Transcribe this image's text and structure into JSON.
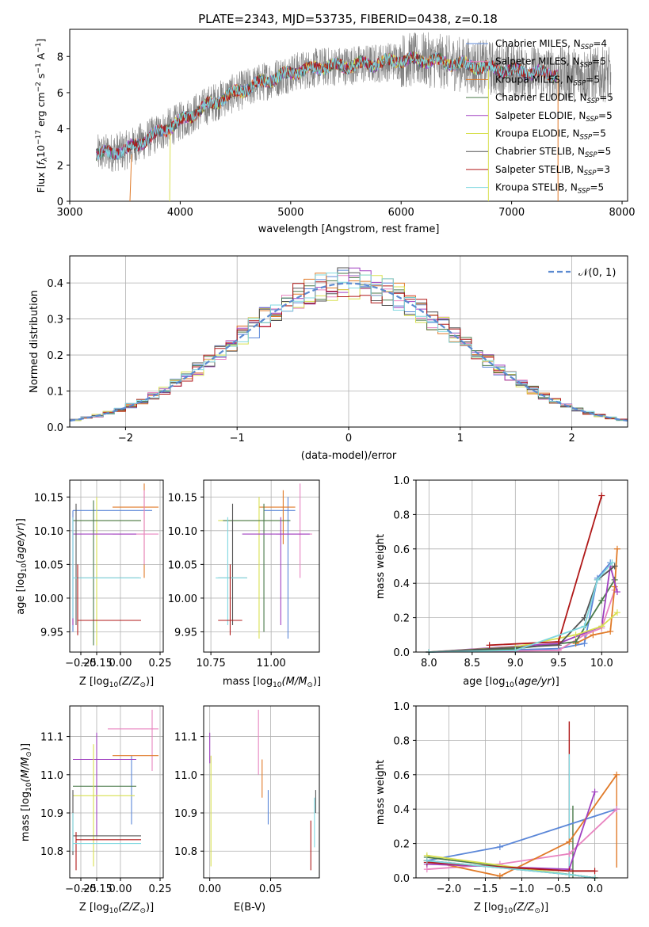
{
  "colors": {
    "chabrier_miles": "#5b87d8",
    "salpeter_miles": "#e884c0",
    "kroupa_miles": "#e07a28",
    "chabrier_elodie": "#4a7a4a",
    "salpeter_elodie": "#a040c0",
    "kroupa_elodie": "#d8e050",
    "chabrier_stelib": "#555555",
    "salpeter_stelib": "#b01818",
    "kroupa_stelib": "#80d8e0",
    "gauss": "#5b8ad0",
    "data": "#808080"
  },
  "chart_data": [
    {
      "id": "spectrum",
      "type": "line",
      "title": "PLATE=2343, MJD=53735, FIBERID=0438, z=0.18",
      "xlabel": "wavelength [Angstrom, rest frame]",
      "ylabel": "Flux [f_λ 10^-17 erg cm^-2 s^-1 A^-1]",
      "xlim": [
        3000,
        8050
      ],
      "ylim": [
        0,
        9.5
      ],
      "xticks": [
        "3000",
        "4000",
        "5000",
        "6000",
        "7000",
        "8000"
      ],
      "yticks": [
        "0",
        "2",
        "4",
        "6",
        "8"
      ],
      "legend_position": "top-right",
      "grid": false,
      "continuum_x": [
        3250,
        3500,
        3750,
        4000,
        4250,
        4500,
        4750,
        5000,
        5250,
        5500,
        5750,
        6000,
        6250,
        6500,
        6750,
        7000,
        7250,
        7500
      ],
      "continuum_y": [
        2.6,
        2.8,
        3.6,
        4.4,
        5.3,
        6.0,
        6.6,
        7.1,
        7.4,
        7.5,
        7.6,
        7.8,
        7.8,
        7.6,
        7.4,
        7.2,
        7.1,
        7.0
      ],
      "series": [
        {
          "name": "Chabrier MILES, N_SSP=4",
          "label_main": "Chabrier MILES, N",
          "label_sub": "SSP",
          "label_tail": "=4",
          "color_key": "chabrier_miles"
        },
        {
          "name": "Salpeter MILES, N_SSP=5",
          "label_main": "Salpeter MILES, N",
          "label_sub": "SSP",
          "label_tail": "=5",
          "color_key": "salpeter_miles"
        },
        {
          "name": "Kroupa MILES, N_SSP=5",
          "label_main": "Kroupa MILES, N",
          "label_sub": "SSP",
          "label_tail": "=5",
          "color_key": "kroupa_miles"
        },
        {
          "name": "Chabrier ELODIE, N_SSP=5",
          "label_main": "Chabrier ELODIE, N",
          "label_sub": "SSP",
          "label_tail": "=5",
          "color_key": "chabrier_elodie"
        },
        {
          "name": "Salpeter ELODIE, N_SSP=5",
          "label_main": "Salpeter ELODIE, N",
          "label_sub": "SSP",
          "label_tail": "=5",
          "color_key": "salpeter_elodie"
        },
        {
          "name": "Kroupa ELODIE, N_SSP=5",
          "label_main": "Kroupa ELODIE, N",
          "label_sub": "SSP",
          "label_tail": "=5",
          "color_key": "kroupa_elodie"
        },
        {
          "name": "Chabrier STELIB, N_SSP=5",
          "label_main": "Chabrier STELIB, N",
          "label_sub": "SSP",
          "label_tail": "=5",
          "color_key": "chabrier_stelib"
        },
        {
          "name": "Salpeter STELIB, N_SSP=3",
          "label_main": "Salpeter STELIB, N",
          "label_sub": "SSP",
          "label_tail": "=3",
          "color_key": "salpeter_stelib"
        },
        {
          "name": "Kroupa STELIB, N_SSP=5",
          "label_main": "Kroupa STELIB, N",
          "label_sub": "SSP",
          "label_tail": "=5",
          "color_key": "kroupa_stelib"
        }
      ]
    },
    {
      "id": "residuals",
      "type": "bar",
      "xlabel": "(data-model)/error",
      "ylabel": "Normed distribution",
      "xlim": [
        -2.5,
        2.5
      ],
      "ylim": [
        0,
        0.475
      ],
      "xticks": [
        "−2",
        "−1",
        "0",
        "1",
        "2"
      ],
      "yticks": [
        "0.0",
        "0.1",
        "0.2",
        "0.3",
        "0.4"
      ],
      "legend_position": "top-right",
      "legend_label": "𝒩(0, 1)",
      "grid": true,
      "bin_width": 0.1,
      "x_start": -2.5
    },
    {
      "id": "age_vs_Z",
      "type": "scatter",
      "xlabel_main": "Z [log",
      "xlabel_sub": "10",
      "xlabel_tail": "(Z/Z",
      "xlabel_end": ")]",
      "ylabel": "age  [log10(age/yr)]",
      "xlim": [
        -0.32,
        0.27
      ],
      "ylim": [
        9.92,
        10.175
      ],
      "xticks": [
        "−0.25",
        "−0.15",
        "0.00",
        "0.25"
      ],
      "xtick_values": [
        -0.25,
        -0.15,
        0.0,
        0.25
      ],
      "yticks": [
        "9.95",
        "10.00",
        "10.05",
        "10.10",
        "10.15"
      ],
      "ytick_values": [
        9.95,
        10.0,
        10.05,
        10.1,
        10.15
      ],
      "grid": true,
      "points": [
        {
          "color_key": "chabrier_miles",
          "x": -0.3,
          "x_lo": -0.3,
          "x_hi": 0.2,
          "y": 10.13,
          "y_lo": 9.95,
          "y_hi": 10.13
        },
        {
          "color_key": "kroupa_miles",
          "x": 0.15,
          "x_lo": -0.05,
          "x_hi": 0.24,
          "y": 10.135,
          "y_lo": 10.03,
          "y_hi": 10.17
        },
        {
          "color_key": "salpeter_miles",
          "x": 0.15,
          "x_lo": -0.05,
          "x_hi": 0.24,
          "y": 10.095,
          "y_lo": 10.05,
          "y_hi": 10.16
        },
        {
          "color_key": "kroupa_elodie",
          "x": -0.15,
          "x_lo": -0.3,
          "x_hi": 0.13,
          "y": 10.115,
          "y_lo": 9.93,
          "y_hi": 10.15
        },
        {
          "color_key": "chabrier_elodie",
          "x": -0.17,
          "x_lo": -0.3,
          "x_hi": 0.13,
          "y": 10.115,
          "y_lo": 9.93,
          "y_hi": 10.145
        },
        {
          "color_key": "salpeter_elodie",
          "x": -0.3,
          "x_lo": -0.3,
          "x_hi": 0.1,
          "y": 10.095,
          "y_lo": 9.96,
          "y_hi": 10.12
        },
        {
          "color_key": "chabrier_stelib",
          "x": -0.28,
          "x_lo": -0.28,
          "x_hi": 0.12,
          "y": 10.03,
          "y_lo": 9.96,
          "y_hi": 10.14
        },
        {
          "color_key": "kroupa_stelib",
          "x": -0.3,
          "x_lo": -0.3,
          "x_hi": 0.13,
          "y": 10.03,
          "y_lo": 9.97,
          "y_hi": 10.12
        },
        {
          "color_key": "salpeter_stelib",
          "x": -0.27,
          "x_lo": -0.27,
          "x_hi": 0.13,
          "y": 9.967,
          "y_lo": 9.945,
          "y_hi": 10.05
        }
      ]
    },
    {
      "id": "age_vs_mass",
      "type": "scatter",
      "xlabel_main": "mass [log",
      "xlabel_sub": "10",
      "xlabel_tail": "(M/M",
      "xlabel_end": ")]",
      "xlim": [
        10.72,
        11.2
      ],
      "ylim": [
        9.92,
        10.175
      ],
      "xticks": [
        "10.75",
        "11.00"
      ],
      "xtick_values": [
        10.75,
        11.0
      ],
      "yticks": [
        "9.95",
        "10.00",
        "10.05",
        "10.10",
        "10.15"
      ],
      "ytick_values": [
        9.95,
        10.0,
        10.05,
        10.1,
        10.15
      ],
      "grid": true,
      "points": [
        {
          "color_key": "chabrier_miles",
          "x": 11.07,
          "x_lo": 10.97,
          "x_hi": 11.1,
          "y": 10.13,
          "y_lo": 9.94,
          "y_hi": 10.15
        },
        {
          "color_key": "kroupa_miles",
          "x": 11.05,
          "x_lo": 10.95,
          "x_hi": 11.1,
          "y": 10.135,
          "y_lo": 10.08,
          "y_hi": 10.16
        },
        {
          "color_key": "salpeter_miles",
          "x": 11.12,
          "x_lo": 11.02,
          "x_hi": 11.17,
          "y": 10.095,
          "y_lo": 10.03,
          "y_hi": 10.17
        },
        {
          "color_key": "kroupa_elodie",
          "x": 10.95,
          "x_lo": 10.78,
          "x_hi": 11.06,
          "y": 10.115,
          "y_lo": 9.94,
          "y_hi": 10.15
        },
        {
          "color_key": "chabrier_elodie",
          "x": 10.97,
          "x_lo": 10.8,
          "x_hi": 11.08,
          "y": 10.115,
          "y_lo": 9.95,
          "y_hi": 10.14
        },
        {
          "color_key": "salpeter_elodie",
          "x": 11.04,
          "x_lo": 10.88,
          "x_hi": 11.16,
          "y": 10.095,
          "y_lo": 9.96,
          "y_hi": 10.12
        },
        {
          "color_key": "chabrier_stelib",
          "x": 10.84,
          "x_lo": 10.78,
          "x_hi": 10.9,
          "y": 10.03,
          "y_lo": 9.96,
          "y_hi": 10.14
        },
        {
          "color_key": "kroupa_stelib",
          "x": 10.82,
          "x_lo": 10.77,
          "x_hi": 10.9,
          "y": 10.03,
          "y_lo": 9.96,
          "y_hi": 10.12
        },
        {
          "color_key": "salpeter_stelib",
          "x": 10.83,
          "x_lo": 10.78,
          "x_hi": 10.88,
          "y": 9.967,
          "y_lo": 9.945,
          "y_hi": 10.05
        }
      ]
    },
    {
      "id": "mass_weight_vs_age",
      "type": "line",
      "xlabel": "age  [log10(age/yr)]",
      "ylabel": "mass weight",
      "xlim": [
        7.85,
        10.3
      ],
      "ylim": [
        0,
        1
      ],
      "xticks": [
        "8.0",
        "8.5",
        "9.0",
        "9.5",
        "10.0"
      ],
      "xtick_values": [
        8.0,
        8.5,
        9.0,
        9.5,
        10.0
      ],
      "yticks": [
        "0.0",
        "0.2",
        "0.4",
        "0.6",
        "0.8",
        "1.0"
      ],
      "ytick_values": [
        0.0,
        0.2,
        0.4,
        0.6,
        0.8,
        1.0
      ],
      "grid": true,
      "series": [
        {
          "color_key": "chabrier_miles",
          "x": [
            8.0,
            9.5,
            9.8,
            9.95,
            10.1
          ],
          "y": [
            0.0,
            0.02,
            0.05,
            0.43,
            0.52
          ]
        },
        {
          "color_key": "salpeter_miles",
          "x": [
            8.0,
            9.5,
            9.8,
            10.0,
            10.15
          ],
          "y": [
            0.0,
            0.01,
            0.1,
            0.14,
            0.36
          ]
        },
        {
          "color_key": "kroupa_miles",
          "x": [
            9.7,
            9.9,
            10.1,
            10.15,
            10.18
          ],
          "y": [
            0.05,
            0.1,
            0.12,
            0.38,
            0.6
          ]
        },
        {
          "color_key": "chabrier_elodie",
          "x": [
            8.0,
            9.0,
            9.7,
            10.0,
            10.15
          ],
          "y": [
            0.0,
            0.02,
            0.06,
            0.3,
            0.42
          ]
        },
        {
          "color_key": "salpeter_elodie",
          "x": [
            8.0,
            9.5,
            10.0,
            10.1,
            10.18
          ],
          "y": [
            0.0,
            0.05,
            0.15,
            0.5,
            0.35
          ]
        },
        {
          "color_key": "kroupa_elodie",
          "x": [
            8.0,
            9.0,
            9.7,
            10.0,
            10.18
          ],
          "y": [
            0.0,
            0.03,
            0.1,
            0.15,
            0.23
          ]
        },
        {
          "color_key": "chabrier_stelib",
          "x": [
            8.0,
            9.5,
            9.8,
            9.95,
            10.15
          ],
          "y": [
            0.0,
            0.04,
            0.2,
            0.42,
            0.5
          ]
        },
        {
          "color_key": "salpeter_stelib",
          "x": [
            8.7,
            9.5,
            10.0
          ],
          "y": [
            0.04,
            0.06,
            0.91
          ]
        },
        {
          "color_key": "kroupa_stelib",
          "x": [
            8.0,
            9.0,
            9.8,
            9.95,
            10.12
          ],
          "y": [
            0.0,
            0.01,
            0.15,
            0.42,
            0.52
          ]
        }
      ]
    },
    {
      "id": "mass_vs_Z",
      "type": "scatter",
      "xlabel_main": "Z [log",
      "xlabel_sub": "10",
      "xlabel_tail": "(Z/Z",
      "xlabel_end": ")]",
      "ylabel": "mass [log10(M/M☉)]",
      "xlim": [
        -0.32,
        0.27
      ],
      "ylim": [
        10.73,
        11.18
      ],
      "xticks": [
        "−0.25",
        "−0.15",
        "0.00",
        "0.25"
      ],
      "xtick_values": [
        -0.25,
        -0.15,
        0.0,
        0.25
      ],
      "yticks": [
        "10.8",
        "10.9",
        "11.0",
        "11.1"
      ],
      "ytick_values": [
        10.8,
        10.9,
        11.0,
        11.1
      ],
      "grid": true,
      "points": [
        {
          "color_key": "chabrier_miles",
          "x": 0.07,
          "x_lo": 0.07,
          "x_hi": 0.07,
          "y": 10.95,
          "y_lo": 10.87,
          "y_hi": 11.05
        },
        {
          "color_key": "salpeter_miles",
          "x": 0.2,
          "x_lo": -0.08,
          "x_hi": 0.24,
          "y": 11.12,
          "y_lo": 11.01,
          "y_hi": 11.17
        },
        {
          "color_key": "kroupa_miles",
          "x": 0.15,
          "x_lo": -0.05,
          "x_hi": 0.24,
          "y": 11.05,
          "y_lo": 11.05,
          "y_hi": 11.05
        },
        {
          "color_key": "chabrier_elodie",
          "x": -0.15,
          "x_lo": -0.3,
          "x_hi": 0.1,
          "y": 10.97,
          "y_lo": 10.97,
          "y_hi": 10.97
        },
        {
          "color_key": "salpeter_elodie",
          "x": -0.15,
          "x_lo": -0.3,
          "x_hi": 0.1,
          "y": 11.04,
          "y_lo": 10.84,
          "y_hi": 11.11
        },
        {
          "color_key": "kroupa_elodie",
          "x": -0.17,
          "x_lo": -0.3,
          "x_hi": 0.09,
          "y": 10.945,
          "y_lo": 10.76,
          "y_hi": 11.08
        },
        {
          "color_key": "chabrier_stelib",
          "x": -0.3,
          "x_lo": -0.3,
          "x_hi": 0.13,
          "y": 10.84,
          "y_lo": 10.79,
          "y_hi": 10.96
        },
        {
          "color_key": "salpeter_stelib",
          "x": -0.28,
          "x_lo": -0.28,
          "x_hi": 0.13,
          "y": 10.83,
          "y_lo": 10.75,
          "y_hi": 10.85
        },
        {
          "color_key": "kroupa_stelib",
          "x": -0.3,
          "x_lo": -0.3,
          "x_hi": 0.13,
          "y": 10.82,
          "y_lo": 10.8,
          "y_hi": 10.9
        }
      ]
    },
    {
      "id": "mass_vs_EBV",
      "type": "scatter",
      "xlabel": "E(B-V)",
      "xlim": [
        -0.005,
        0.09
      ],
      "ylim": [
        10.73,
        11.18
      ],
      "xticks": [
        "0.00",
        "0.05"
      ],
      "xtick_values": [
        0.0,
        0.05
      ],
      "yticks": [
        "10.8",
        "10.9",
        "11.0",
        "11.1"
      ],
      "ytick_values": [
        10.8,
        10.9,
        11.0,
        11.1
      ],
      "grid": true,
      "points": [
        {
          "color_key": "salpeter_elodie",
          "x": 0.0,
          "y_lo": 11.03,
          "y_hi": 11.11
        },
        {
          "color_key": "kroupa_elodie",
          "x": 0.001,
          "y_lo": 10.76,
          "y_hi": 11.05
        },
        {
          "color_key": "salpeter_miles",
          "x": 0.04,
          "y_lo": 11.0,
          "y_hi": 11.17
        },
        {
          "color_key": "kroupa_miles",
          "x": 0.043,
          "y_lo": 10.94,
          "y_hi": 11.04
        },
        {
          "color_key": "chabrier_miles",
          "x": 0.048,
          "y_lo": 10.87,
          "y_hi": 10.96
        },
        {
          "color_key": "salpeter_stelib",
          "x": 0.083,
          "y_lo": 10.75,
          "y_hi": 10.88
        },
        {
          "color_key": "kroupa_stelib",
          "x": 0.086,
          "y_lo": 10.81,
          "y_hi": 10.94
        },
        {
          "color_key": "chabrier_stelib",
          "x": 0.087,
          "y_lo": 10.9,
          "y_hi": 10.96
        }
      ]
    },
    {
      "id": "mass_weight_vs_Z",
      "type": "line",
      "xlabel_main": "Z [log",
      "xlabel_sub": "10",
      "xlabel_tail": "(Z/Z",
      "xlabel_end": ")]",
      "ylabel": "mass weight",
      "xlim": [
        -2.45,
        0.45
      ],
      "ylim": [
        0,
        1
      ],
      "xticks": [
        "−2.0",
        "−1.5",
        "−1.0",
        "−0.5",
        "0.0"
      ],
      "xtick_values": [
        -2.0,
        -1.5,
        -1.0,
        -0.5,
        0.0
      ],
      "yticks": [
        "0.0",
        "0.2",
        "0.4",
        "0.6",
        "0.8",
        "1.0"
      ],
      "ytick_values": [
        0.0,
        0.2,
        0.4,
        0.6,
        0.8,
        1.0
      ],
      "grid": true,
      "series": [
        {
          "color_key": "chabrier_miles",
          "x": [
            -2.3,
            -1.3,
            0.3
          ],
          "y": [
            0.1,
            0.18,
            0.4
          ]
        },
        {
          "color_key": "salpeter_miles",
          "x": [
            -2.3,
            -1.3,
            -0.35,
            0.3
          ],
          "y": [
            0.05,
            0.08,
            0.14,
            0.4
          ]
        },
        {
          "color_key": "kroupa_miles",
          "x": [
            -2.3,
            -1.3,
            -0.35,
            0.3
          ],
          "y": [
            0.1,
            0.01,
            0.21,
            0.6
          ]
        },
        {
          "color_key": "chabrier_elodie",
          "x": [
            -2.3,
            -0.35,
            0.0
          ],
          "y": [
            0.12,
            0.02,
            0.0
          ]
        },
        {
          "color_key": "salpeter_elodie",
          "x": [
            -2.3,
            -0.35,
            0.0
          ],
          "y": [
            0.08,
            0.05,
            0.5
          ]
        },
        {
          "color_key": "kroupa_elodie",
          "x": [
            -2.3,
            -0.35,
            0.0
          ],
          "y": [
            0.13,
            0.02,
            0.0
          ]
        },
        {
          "color_key": "chabrier_stelib",
          "x": [
            -2.3,
            -0.35,
            0.0
          ],
          "y": [
            0.1,
            0.02,
            0.0
          ]
        },
        {
          "color_key": "salpeter_stelib",
          "x": [
            -2.3,
            -0.35,
            0.0
          ],
          "y": [
            0.09,
            0.04,
            0.04
          ]
        },
        {
          "color_key": "kroupa_stelib",
          "x": [
            -2.3,
            -0.35,
            0.0
          ],
          "y": [
            0.1,
            0.02,
            0.0
          ]
        }
      ],
      "vertical_bars": [
        {
          "color_key": "salpeter_stelib",
          "x": -0.35,
          "y_lo": 0.0,
          "y_hi": 0.91
        },
        {
          "color_key": "kroupa_stelib",
          "x": -0.35,
          "y_lo": 0.0,
          "y_hi": 0.72
        },
        {
          "color_key": "kroupa_miles",
          "x": 0.3,
          "y_lo": 0.06,
          "y_hi": 0.6
        },
        {
          "color_key": "chabrier_elodie",
          "x": -0.3,
          "y_lo": 0.0,
          "y_hi": 0.42
        }
      ]
    }
  ]
}
